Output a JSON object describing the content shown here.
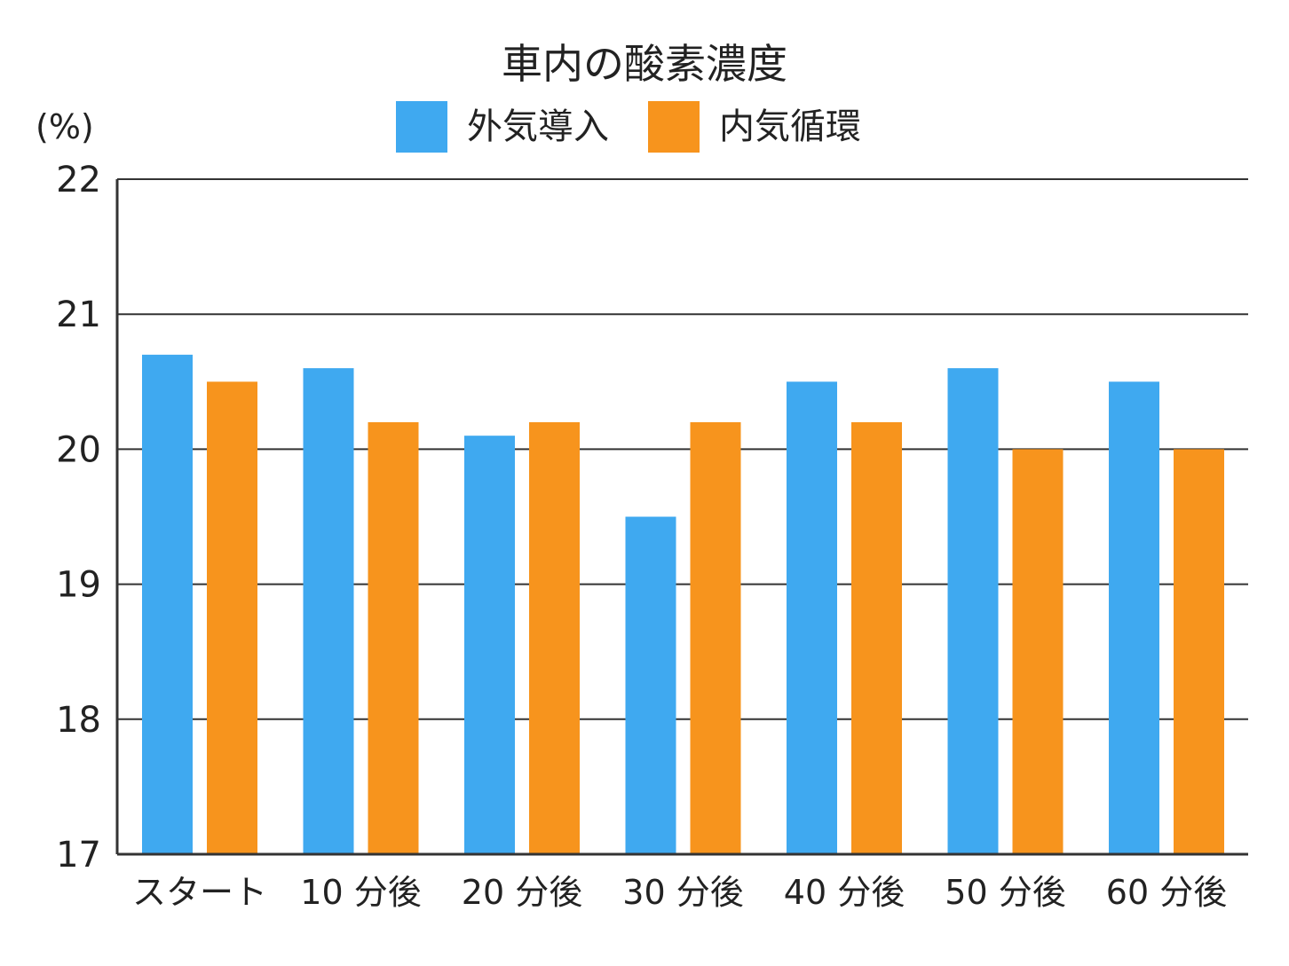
{
  "chart_data": {
    "type": "bar",
    "title": "車内の酸素濃度",
    "unit_label": "(%)",
    "categories": [
      "スタート",
      "10 分後",
      "20 分後",
      "30 分後",
      "40 分後",
      "50 分後",
      "60 分後"
    ],
    "series": [
      {
        "name": "外気導入",
        "color": "#3fa9f0",
        "values": [
          20.7,
          20.6,
          20.1,
          19.5,
          20.5,
          20.6,
          20.5
        ]
      },
      {
        "name": "内気循環",
        "color": "#f7941d",
        "values": [
          20.5,
          20.2,
          20.2,
          20.2,
          20.2,
          20.0,
          20.0
        ]
      }
    ],
    "ylim": [
      17,
      22
    ],
    "yticks": [
      17,
      18,
      19,
      20,
      21,
      22
    ],
    "grid": true,
    "legend_position": "top-center"
  }
}
